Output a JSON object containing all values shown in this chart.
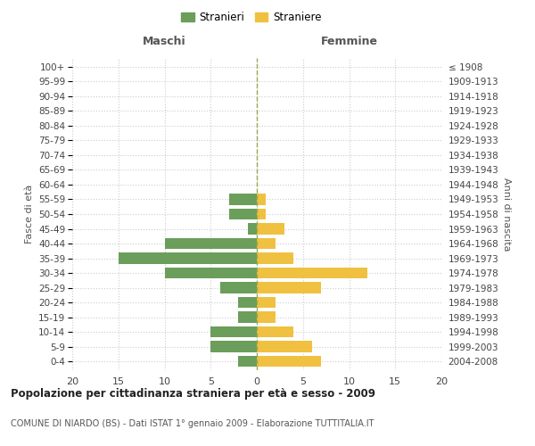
{
  "age_groups": [
    "0-4",
    "5-9",
    "10-14",
    "15-19",
    "20-24",
    "25-29",
    "30-34",
    "35-39",
    "40-44",
    "45-49",
    "50-54",
    "55-59",
    "60-64",
    "65-69",
    "70-74",
    "75-79",
    "80-84",
    "85-89",
    "90-94",
    "95-99",
    "100+"
  ],
  "birth_years": [
    "2004-2008",
    "1999-2003",
    "1994-1998",
    "1989-1993",
    "1984-1988",
    "1979-1983",
    "1974-1978",
    "1969-1973",
    "1964-1968",
    "1959-1963",
    "1954-1958",
    "1949-1953",
    "1944-1948",
    "1939-1943",
    "1934-1938",
    "1929-1933",
    "1924-1928",
    "1919-1923",
    "1914-1918",
    "1909-1913",
    "≤ 1908"
  ],
  "males": [
    2,
    5,
    5,
    2,
    2,
    4,
    10,
    15,
    10,
    1,
    3,
    3,
    0,
    0,
    0,
    0,
    0,
    0,
    0,
    0,
    0
  ],
  "females": [
    7,
    6,
    4,
    2,
    2,
    7,
    12,
    4,
    2,
    3,
    1,
    1,
    0,
    0,
    0,
    0,
    0,
    0,
    0,
    0,
    0
  ],
  "male_color": "#6a9e5a",
  "female_color": "#f0c040",
  "center_line_color": "#9aaa50",
  "grid_color": "#cccccc",
  "background_color": "#ffffff",
  "title": "Popolazione per cittadinanza straniera per età e sesso - 2009",
  "subtitle": "COMUNE DI NIARDO (BS) - Dati ISTAT 1° gennaio 2009 - Elaborazione TUTTITALIA.IT",
  "xlabel_left": "Maschi",
  "xlabel_right": "Femmine",
  "ylabel_left": "Fasce di età",
  "ylabel_right": "Anni di nascita",
  "legend_males": "Stranieri",
  "legend_females": "Straniere",
  "xlim": 20,
  "bar_height": 0.75
}
